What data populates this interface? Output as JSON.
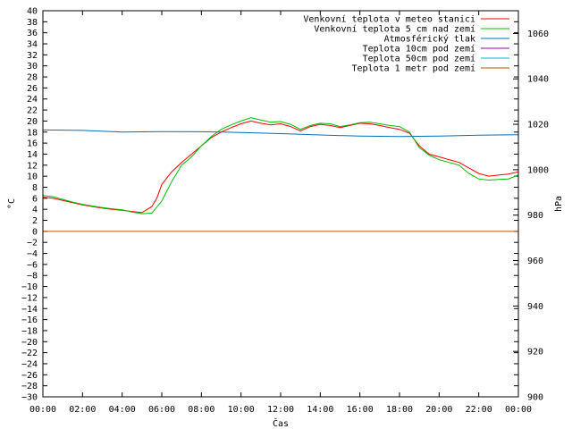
{
  "chart_data": {
    "type": "line",
    "title": "",
    "xlabel": "Čas",
    "ylabel": "°C",
    "y2label": "hPa",
    "grid": false,
    "legend_position": "top-right",
    "x_ticks": [
      "00:00",
      "02:00",
      "04:00",
      "06:00",
      "08:00",
      "10:00",
      "12:00",
      "14:00",
      "16:00",
      "18:00",
      "20:00",
      "22:00",
      "00:00"
    ],
    "xlim": [
      0,
      24
    ],
    "ylim": [
      -30,
      40
    ],
    "y_tick_step": 2,
    "y2lim": [
      900,
      1070
    ],
    "y2_ticks": [
      900,
      920,
      940,
      960,
      980,
      1000,
      1020,
      1040,
      1060
    ],
    "series": [
      {
        "name": "Venkovní teplota v meteo stanici",
        "color": "#ff0000",
        "axis": "left",
        "x": [
          0,
          0.5,
          1,
          1.5,
          2,
          2.5,
          3,
          3.5,
          4,
          4.5,
          5,
          5.5,
          5.75,
          6,
          6.5,
          7,
          7.5,
          8,
          8.5,
          9,
          9.5,
          10,
          10.5,
          11,
          11.5,
          12,
          12.5,
          13,
          13.5,
          14,
          14.5,
          15,
          15.5,
          16,
          16.5,
          17,
          17.5,
          18,
          18.5,
          19,
          19.5,
          20,
          20.5,
          21,
          21.5,
          22,
          22.5,
          23,
          23.5,
          24
        ],
        "y": [
          6.2,
          6.0,
          5.6,
          5.2,
          4.8,
          4.5,
          4.2,
          4.0,
          3.8,
          3.6,
          3.4,
          4.5,
          6.0,
          8.5,
          10.8,
          12.5,
          14.0,
          15.5,
          17.0,
          18.0,
          18.8,
          19.5,
          20.0,
          19.6,
          19.3,
          19.5,
          19.0,
          18.2,
          19.0,
          19.4,
          19.2,
          18.8,
          19.2,
          19.6,
          19.5,
          19.2,
          18.8,
          18.5,
          17.8,
          15.5,
          14.0,
          13.5,
          13.0,
          12.5,
          11.5,
          10.5,
          10.0,
          10.2,
          10.4,
          10.8
        ]
      },
      {
        "name": "Venkovní teplota 5 cm nad zemí",
        "color": "#00c000",
        "axis": "left",
        "x": [
          0,
          0.5,
          1,
          1.5,
          2,
          2.5,
          3,
          3.5,
          4,
          4.5,
          5,
          5.5,
          6,
          6.5,
          7,
          7.5,
          8,
          8.5,
          9,
          9.5,
          10,
          10.5,
          11,
          11.5,
          12,
          12.5,
          13,
          13.5,
          14,
          14.5,
          15,
          15.5,
          16,
          16.5,
          17,
          17.5,
          18,
          18.5,
          19,
          19.5,
          20,
          20.5,
          21,
          21.5,
          22,
          22.5,
          23,
          23.5,
          24
        ],
        "y": [
          6.5,
          6.3,
          5.8,
          5.3,
          4.9,
          4.6,
          4.3,
          4.1,
          3.9,
          3.5,
          3.2,
          3.3,
          5.5,
          9.0,
          12.0,
          13.5,
          15.5,
          17.2,
          18.5,
          19.3,
          20.0,
          20.6,
          20.2,
          19.8,
          19.9,
          19.4,
          18.5,
          19.2,
          19.6,
          19.5,
          19.0,
          19.3,
          19.7,
          19.8,
          19.5,
          19.2,
          19.0,
          18.0,
          15.2,
          13.8,
          13.0,
          12.5,
          12.0,
          10.5,
          9.5,
          9.3,
          9.4,
          9.5,
          10.2
        ]
      },
      {
        "name": "Atmosférický tlak",
        "color": "#0070c0",
        "axis": "right",
        "x": [
          0,
          2,
          4,
          6,
          8,
          10,
          12,
          14,
          16,
          18,
          20,
          22,
          24
        ],
        "y": [
          1017.5,
          1017.3,
          1016.6,
          1016.8,
          1016.7,
          1016.4,
          1015.9,
          1015.3,
          1014.8,
          1014.6,
          1014.8,
          1015.2,
          1015.4
        ]
      },
      {
        "name": "Teplota 10cm pod zemí",
        "color": "#a000a0",
        "axis": "left",
        "x": [],
        "y": []
      },
      {
        "name": "Teplota 50cm pod zemí",
        "color": "#00c0c0",
        "axis": "left",
        "x": [],
        "y": []
      },
      {
        "name": "Teplota 1 metr pod zemí",
        "color": "#c05000",
        "axis": "left",
        "x": [
          0,
          24
        ],
        "y": [
          0,
          0
        ]
      }
    ]
  }
}
